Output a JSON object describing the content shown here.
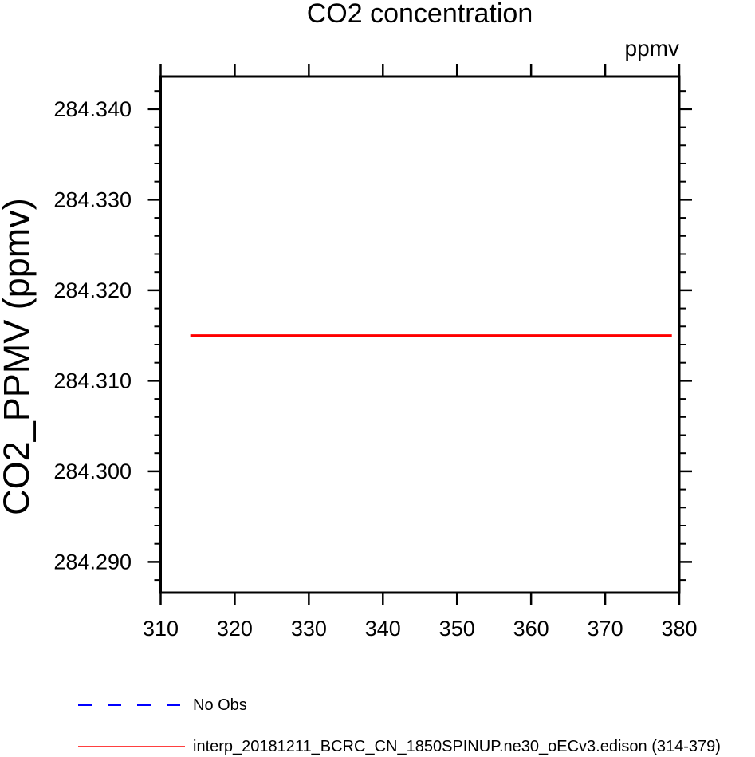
{
  "page": {
    "background_color": "#ffffff",
    "text_color": "#000000",
    "axis_color": "#000000"
  },
  "chart_data": {
    "type": "line",
    "title": "CO2 concentration",
    "unit_label_top_right": "ppmv",
    "ylabel": "CO2_PPMV (ppmv)",
    "xlabel": "",
    "grid": false,
    "xlim": [
      310,
      380
    ],
    "ylim": [
      284.2866,
      284.3436
    ],
    "xticks": [
      310,
      320,
      330,
      340,
      350,
      360,
      370,
      380
    ],
    "yticks_major": {
      "values": [
        284.29,
        284.3,
        284.31,
        284.32,
        284.33,
        284.34
      ],
      "labels": [
        "284.290",
        "284.300",
        "284.310",
        "284.320",
        "284.330",
        "284.340"
      ]
    },
    "yticks_minor": [
      284.288,
      284.292,
      284.294,
      284.296,
      284.298,
      284.302,
      284.304,
      284.306,
      284.308,
      284.312,
      284.314,
      284.316,
      284.318,
      284.322,
      284.324,
      284.326,
      284.328,
      284.332,
      284.334,
      284.336,
      284.338,
      284.342
    ],
    "series": [
      {
        "name": "No Obs",
        "color": "#0000ff",
        "line_style": "dashed",
        "x": [],
        "y": []
      },
      {
        "name": "interp_20181211_BCRC_CN_1850SPINUP.ne30_oECv3.edison (314-379)",
        "color": "#ff0000",
        "line_style": "solid",
        "x": [
          314,
          379
        ],
        "y": [
          284.315,
          284.315
        ]
      }
    ],
    "legend": {
      "position": "bottom-left",
      "entries": [
        {
          "label": "No Obs",
          "color": "#0000ff",
          "line_style": "dashed"
        },
        {
          "label": "interp_20181211_BCRC_CN_1850SPINUP.ne30_oECv3.edison (314-379)",
          "color": "#ff4040",
          "line_style": "solid"
        }
      ]
    }
  }
}
